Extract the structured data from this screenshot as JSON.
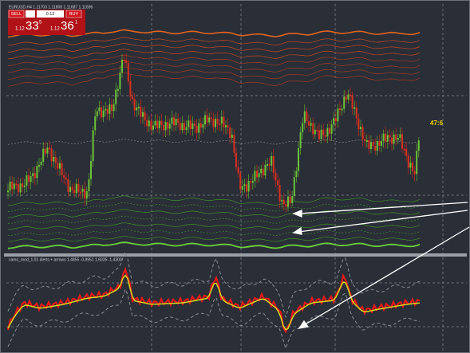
{
  "header": {
    "symbol_info": "EURUSD,H4  1.11703 1.11808 1.11687 1.11696"
  },
  "trade_panel": {
    "sell": "SELL",
    "buy": "BUY",
    "lots": "0.12",
    "sell_price": {
      "big_figure": "1.12",
      "pips": "33",
      "fraction": "5"
    },
    "buy_price": {
      "big_figure": "1.12",
      "pips": "36",
      "fraction": "1"
    }
  },
  "timer": "47:6",
  "indicator": {
    "label": "camo_mod_1.01 alerts + arrows  1.4855 -0.8951 1.6035 -1.4300"
  }
}
